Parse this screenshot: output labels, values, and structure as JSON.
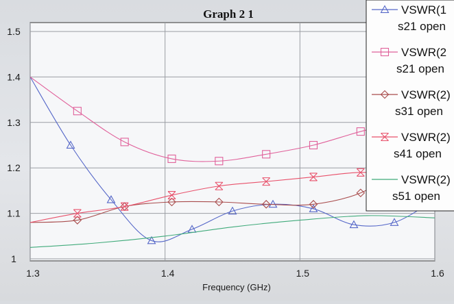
{
  "chart_data": {
    "type": "line",
    "title": "Graph 2 1",
    "xlabel": "Frequency (GHz)",
    "ylabel": "",
    "xlim": [
      1.3,
      1.6
    ],
    "ylim": [
      1.0,
      1.5
    ],
    "xticks": [
      "1.3",
      "1.4",
      "1.5",
      "1.6"
    ],
    "xtick_values": [
      1.3,
      1.4,
      1.5,
      1.6
    ],
    "yticks": [
      "1",
      "1.1",
      "1.2",
      "1.3",
      "1.4",
      "1.5"
    ],
    "ytick_values": [
      1.0,
      1.1,
      1.2,
      1.3,
      1.4,
      1.5
    ],
    "grid": true,
    "legend_position": "right",
    "series": [
      {
        "name": "VSWR(1",
        "sub": "s21 open",
        "color": "#5567c8",
        "marker": "triangle",
        "x": [
          1.3,
          1.33,
          1.36,
          1.39,
          1.42,
          1.45,
          1.48,
          1.51,
          1.54,
          1.57,
          1.6
        ],
        "y": [
          1.4,
          1.25,
          1.13,
          1.04,
          1.065,
          1.105,
          1.12,
          1.11,
          1.075,
          1.08,
          1.13
        ]
      },
      {
        "name": "VSWR(2",
        "sub": "s21 open",
        "color": "#e0609a",
        "marker": "square",
        "x": [
          1.3,
          1.335,
          1.37,
          1.405,
          1.44,
          1.475,
          1.51,
          1.545,
          1.58
        ],
        "y": [
          1.4,
          1.325,
          1.257,
          1.22,
          1.215,
          1.23,
          1.25,
          1.28,
          1.305
        ]
      },
      {
        "name": "VSWR(2)",
        "sub": "s31 open",
        "color": "#a84b4b",
        "marker": "diamond",
        "x": [
          1.3,
          1.335,
          1.37,
          1.405,
          1.44,
          1.475,
          1.51,
          1.545,
          1.58
        ],
        "y": [
          1.08,
          1.085,
          1.115,
          1.125,
          1.125,
          1.12,
          1.12,
          1.145,
          1.205
        ]
      },
      {
        "name": "VSWR(2)",
        "sub": "s41 open",
        "color": "#e8506a",
        "marker": "x",
        "x": [
          1.3,
          1.335,
          1.37,
          1.405,
          1.44,
          1.475,
          1.51,
          1.545,
          1.58
        ],
        "y": [
          1.08,
          1.1,
          1.115,
          1.14,
          1.16,
          1.17,
          1.18,
          1.19,
          1.185
        ]
      },
      {
        "name": "VSWR(2)",
        "sub": "s51 open",
        "color": "#3faa7a",
        "marker": "none",
        "x": [
          1.3,
          1.35,
          1.4,
          1.45,
          1.5,
          1.55,
          1.6
        ],
        "y": [
          1.025,
          1.035,
          1.05,
          1.07,
          1.085,
          1.095,
          1.09
        ]
      }
    ]
  }
}
